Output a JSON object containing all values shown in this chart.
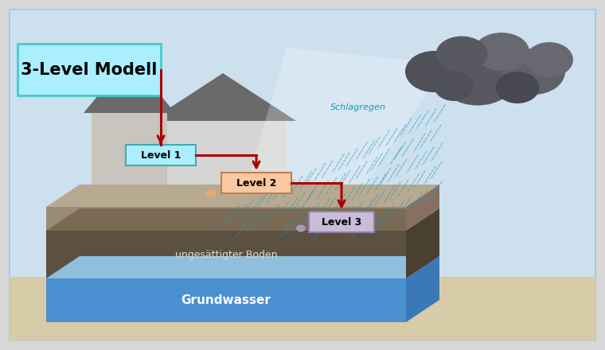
{
  "bg_outer": "#d8d8d8",
  "bg_inner": "#cce0ee",
  "sand_color": "#d8cba8",
  "gw_blue": "#4a90d0",
  "gw_top": "#90bedd",
  "gw_right": "#3a78b8",
  "soil_dark_front": "#5c5040",
  "soil_dark_top": "#7a6a54",
  "soil_dark_right": "#4a4030",
  "soil_tan_front": "#9a8c74",
  "soil_tan_top": "#b8aa90",
  "soil_tan_right": "#887060",
  "wall_color": "#c8c4be",
  "wall_right_color": "#d8d4ce",
  "roof_dark": "#6a6a6a",
  "roof_light": "#888880",
  "rain_color": "#2299bb",
  "rain_zone_color": "#ddeeff",
  "cloud_dark": "#555560",
  "cloud_mid": "#707078",
  "cloud_light": "#909098",
  "title_box_bg": "#aaeeff",
  "title_box_edge": "#44cccc",
  "title_text": "3-Level Modell",
  "level1_bg": "#aaeeff",
  "level1_edge": "#44aaaa",
  "level2_bg": "#f8c8a0",
  "level2_edge": "#c08050",
  "level3_bg": "#c8bcd8",
  "level3_edge": "#9080a8",
  "arrow_color": "#aa0000",
  "soil_label": "ungesättigter Boden",
  "gw_label": "Grundwasser",
  "schlagregen_label": "Schlagregen",
  "schlagregen_color": "#1199bb"
}
